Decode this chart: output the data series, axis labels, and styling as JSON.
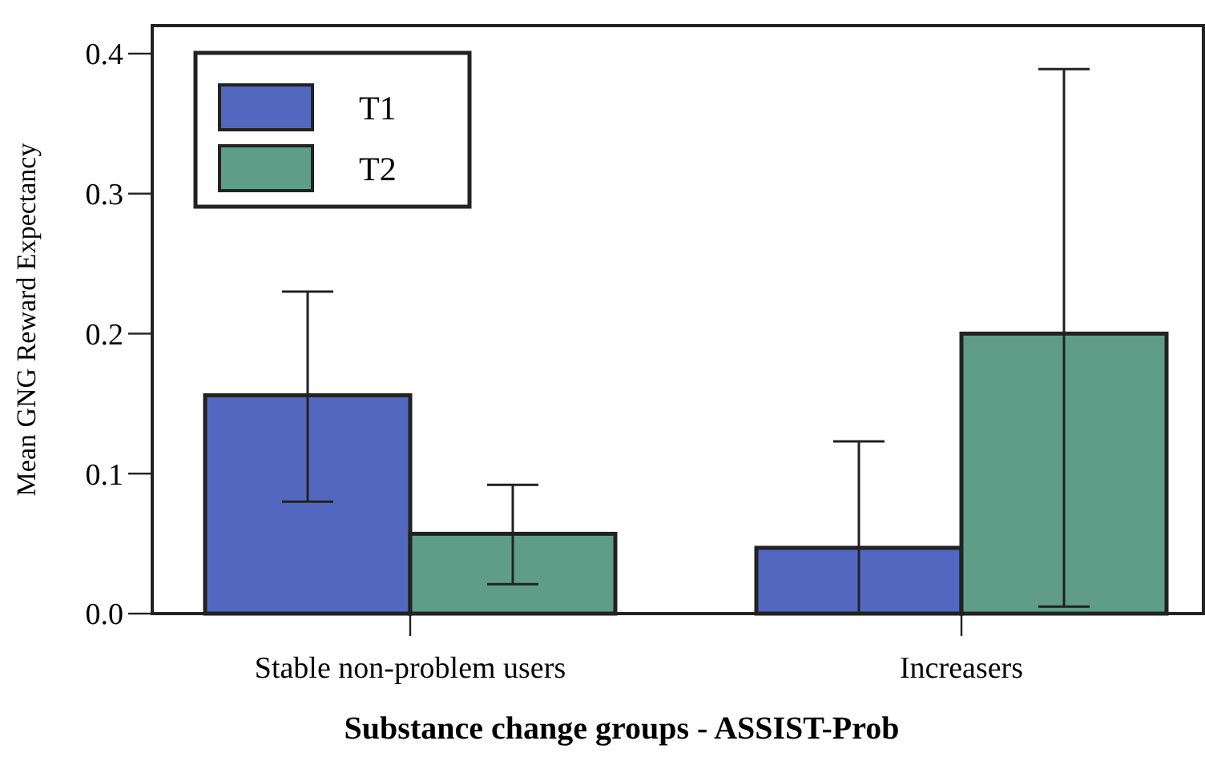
{
  "chart_data": {
    "type": "bar",
    "xlabel": "Substance change groups - ASSIST-Prob",
    "ylabel": "Mean GNG Reward Expectancy",
    "categories": [
      "Stable non-problem users",
      "Increasers"
    ],
    "series": [
      {
        "name": "T1",
        "color": "#5268c0",
        "values": [
          0.156,
          0.047
        ],
        "errors": [
          [
            0.08,
            0.23
          ],
          [
            0,
            0.123
          ]
        ]
      },
      {
        "name": "T2",
        "color": "#5f9d89",
        "values": [
          0.057,
          0.2
        ],
        "errors": [
          [
            0.021,
            0.092
          ],
          [
            0.005,
            0.389
          ]
        ]
      }
    ],
    "ylim": [
      0,
      0.42
    ],
    "yticks": [
      {
        "value": 0,
        "label": "0.0"
      },
      0.1,
      0.2,
      0.3,
      0.4
    ],
    "grid": false,
    "legend": "top left"
  }
}
